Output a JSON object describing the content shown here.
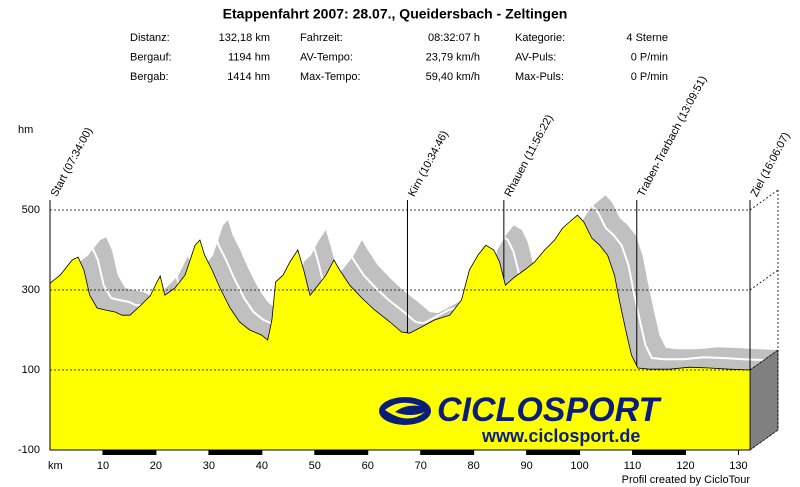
{
  "chart_data": {
    "type": "area",
    "title": "Etappenfahrt 2007: 28.07., Queidersbach - Zeltingen",
    "info": [
      [
        "Distanz:",
        "132,18 km",
        "Fahrzeit:",
        "08:32:07 h",
        "Kategorie:",
        "4 Sterne"
      ],
      [
        "Bergauf:",
        "1194 hm",
        "AV-Tempo:",
        "23,79 km/h",
        "AV-Puls:",
        "0 P/min"
      ],
      [
        "Bergab:",
        "1414 hm",
        "Max-Tempo:",
        "59,40 km/h",
        "Max-Puls:",
        "0 P/min"
      ]
    ],
    "y_label": "hm",
    "x_label": "km",
    "footer": "Profil created by CicloTour",
    "logo": {
      "name": "CICLOSPORT",
      "url": "www.ciclosport.de"
    },
    "waypoints": [
      {
        "label": "Start (07:34:00)",
        "x": 0
      },
      {
        "label": "Kirn (10:34:46)",
        "x": 67.5
      },
      {
        "label": "Rhauen (11:56:22)",
        "x": 85.7
      },
      {
        "label": "Traben-Trarbach (13:09:51)",
        "x": 110.8
      },
      {
        "label": "Ziel (16:06:07)",
        "x": 132.18
      }
    ],
    "x": [
      0,
      1.9,
      4.2,
      5.3,
      6.4,
      7.5,
      8.9,
      10.4,
      12.3,
      13.6,
      15.1,
      17,
      18.9,
      20.2,
      20.8,
      21.7,
      23.6,
      25.5,
      27.4,
      28.3,
      29.2,
      30.6,
      32.1,
      34,
      35.8,
      37.7,
      40,
      41.1,
      41.9,
      42.6,
      44,
      45.3,
      46.8,
      47.9,
      49.1,
      50.6,
      52.1,
      53.6,
      54.7,
      56.6,
      58.9,
      61.3,
      64.2,
      66.4,
      67.9,
      69.8,
      72.6,
      75.5,
      77.7,
      79.2,
      80.8,
      82.3,
      83.8,
      84.9,
      86,
      87.7,
      89.6,
      91.5,
      93.4,
      95.3,
      96.8,
      98.1,
      99.6,
      100.8,
      102.3,
      103.8,
      105.3,
      106.6,
      107.5,
      108.7,
      109.8,
      111,
      113.2,
      117,
      120.8,
      124.5,
      128.3,
      132.18
    ],
    "series": [
      {
        "color": "#ffff00",
        "values": [
          317,
          337,
          375,
          382,
          350,
          287,
          255,
          250,
          245,
          237,
          237,
          260,
          285,
          320,
          335,
          287,
          305,
          337,
          412,
          425,
          387,
          350,
          305,
          255,
          220,
          200,
          187,
          175,
          225,
          320,
          337,
          370,
          400,
          350,
          287,
          312,
          337,
          375,
          350,
          312,
          280,
          250,
          220,
          195,
          192,
          205,
          225,
          237,
          275,
          350,
          387,
          412,
          400,
          370,
          312,
          332,
          350,
          370,
          400,
          425,
          455,
          470,
          487,
          470,
          430,
          412,
          387,
          337,
          275,
          200,
          137,
          105,
          102,
          102,
          107,
          105,
          102,
          100
        ]
      }
    ],
    "xlim": [
      0,
      132.18
    ],
    "ylim": [
      -100,
      500
    ],
    "xticks": [
      10,
      20,
      30,
      40,
      50,
      60,
      70,
      80,
      90,
      100,
      110,
      120,
      130
    ],
    "yticks": [
      -100,
      100,
      300,
      500
    ],
    "grid": true,
    "shadow_color": "#c0c0c0"
  }
}
